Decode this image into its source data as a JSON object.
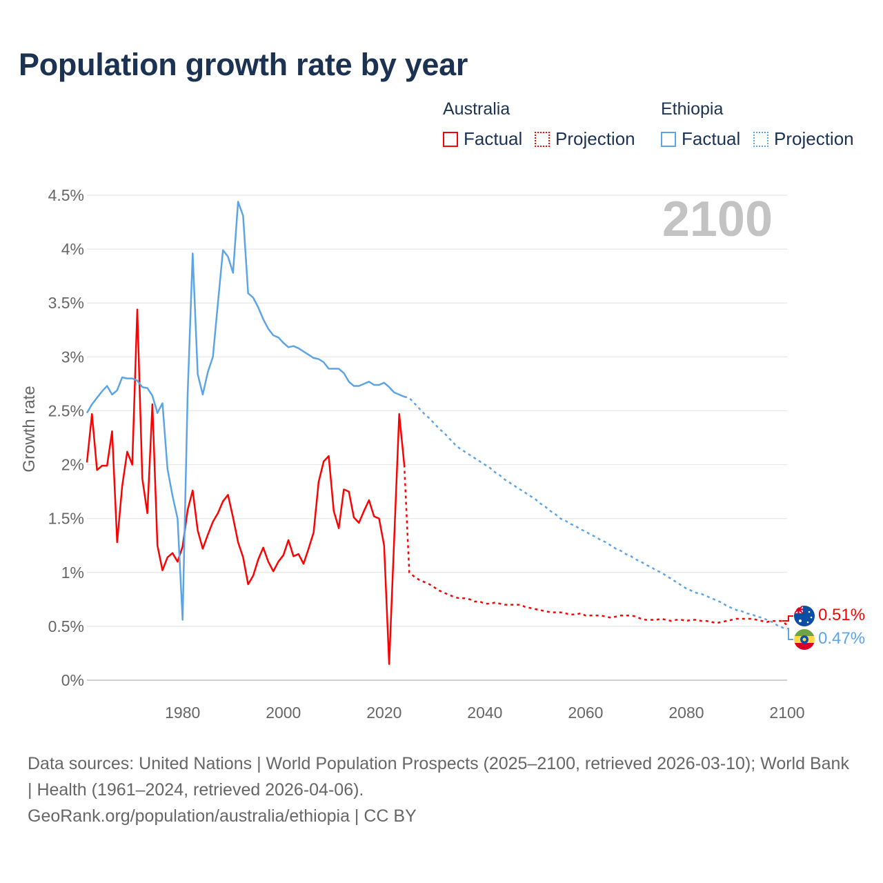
{
  "title": "Population growth rate by year",
  "legend": {
    "groups": [
      {
        "name": "Australia",
        "factual": "Factual",
        "projection": "Projection",
        "color": "#ff0000"
      },
      {
        "name": "Ethiopia",
        "factual": "Factual",
        "projection": "Projection",
        "color": "#5ba4e6"
      }
    ]
  },
  "year_marker": "2100",
  "end_labels": {
    "australia": "0.51%",
    "ethiopia": "0.47%"
  },
  "flag_icons": {
    "australia": "australia-flag-icon",
    "ethiopia": "ethiopia-flag-icon"
  },
  "footer": {
    "sources": "Data sources: United Nations | World Population Prospects (2025–2100, retrieved 2026-03-10); World Bank | Health (1961–2024, retrieved 2026-04-06).",
    "credit": "GeoRank.org/population/australia/ethiopia | CC BY"
  },
  "chart_data": {
    "type": "line",
    "title": "Population growth rate by year",
    "xlabel": "",
    "ylabel": "Growth rate",
    "xlim": [
      1961,
      2100
    ],
    "ylim": [
      0,
      4.5
    ],
    "yticks": [
      0,
      0.5,
      1,
      1.5,
      2,
      2.5,
      3,
      3.5,
      4,
      4.5
    ],
    "ytick_labels": [
      "0%",
      "0.5%",
      "1%",
      "1.5%",
      "2%",
      "2.5%",
      "3%",
      "3.5%",
      "4%",
      "4.5%"
    ],
    "xticks": [
      1980,
      2000,
      2020,
      2040,
      2060,
      2080,
      2100
    ],
    "xtick_labels": [
      "1980",
      "2000",
      "2020",
      "2040",
      "2060",
      "2080",
      "2100"
    ],
    "grid": true,
    "legend_position": "top-right",
    "series": [
      {
        "name": "Australia Factual",
        "color": "#ff0000",
        "style": "solid",
        "start_year": 1961,
        "values": [
          2.02,
          2.47,
          1.95,
          1.99,
          1.99,
          2.31,
          1.28,
          1.8,
          2.12,
          2.0,
          3.44,
          1.87,
          1.55,
          2.56,
          1.25,
          1.02,
          1.14,
          1.18,
          1.1,
          1.24,
          1.58,
          1.76,
          1.39,
          1.22,
          1.35,
          1.47,
          1.55,
          1.66,
          1.72,
          1.51,
          1.28,
          1.14,
          0.89,
          0.97,
          1.12,
          1.23,
          1.1,
          1.01,
          1.1,
          1.16,
          1.3,
          1.15,
          1.17,
          1.08,
          1.22,
          1.37,
          1.84,
          2.03,
          2.08,
          1.57,
          1.41,
          1.77,
          1.75,
          1.51,
          1.46,
          1.57,
          1.67,
          1.52,
          1.5,
          1.25,
          0.15,
          1.31,
          2.47,
          2.0
        ]
      },
      {
        "name": "Australia Projection",
        "color": "#ff0000",
        "style": "dotted",
        "start_year": 2024,
        "values": [
          2.0,
          1.0,
          0.96,
          0.93,
          0.91,
          0.89,
          0.86,
          0.83,
          0.81,
          0.79,
          0.77,
          0.76,
          0.76,
          0.75,
          0.73,
          0.73,
          0.71,
          0.71,
          0.72,
          0.71,
          0.7,
          0.7,
          0.7,
          0.7,
          0.68,
          0.67,
          0.66,
          0.65,
          0.64,
          0.63,
          0.63,
          0.63,
          0.62,
          0.61,
          0.61,
          0.62,
          0.6,
          0.6,
          0.6,
          0.6,
          0.59,
          0.58,
          0.59,
          0.6,
          0.6,
          0.6,
          0.59,
          0.57,
          0.56,
          0.56,
          0.56,
          0.57,
          0.56,
          0.55,
          0.56,
          0.56,
          0.55,
          0.56,
          0.56,
          0.55,
          0.55,
          0.54,
          0.53,
          0.54,
          0.55,
          0.56,
          0.57,
          0.57,
          0.57,
          0.57,
          0.56,
          0.55,
          0.54,
          0.55,
          0.55,
          0.55,
          0.51
        ]
      },
      {
        "name": "Ethiopia Factual",
        "color": "#5ba4e6",
        "style": "solid",
        "start_year": 1961,
        "values": [
          2.48,
          2.56,
          2.62,
          2.68,
          2.73,
          2.65,
          2.69,
          2.81,
          2.8,
          2.8,
          2.78,
          2.72,
          2.71,
          2.64,
          2.48,
          2.57,
          1.96,
          1.71,
          1.5,
          0.56,
          2.65,
          3.96,
          2.84,
          2.65,
          2.86,
          3.0,
          3.5,
          3.99,
          3.93,
          3.78,
          4.44,
          4.31,
          3.59,
          3.55,
          3.46,
          3.35,
          3.26,
          3.2,
          3.18,
          3.13,
          3.09,
          3.1,
          3.08,
          3.05,
          3.02,
          2.99,
          2.98,
          2.95,
          2.89,
          2.89,
          2.89,
          2.85,
          2.77,
          2.73,
          2.73,
          2.75,
          2.77,
          2.74,
          2.74,
          2.76,
          2.72,
          2.67,
          2.65,
          2.63
        ]
      },
      {
        "name": "Ethiopia Projection",
        "color": "#5ba4e6",
        "style": "dotted",
        "start_year": 2024,
        "values": [
          2.63,
          2.62,
          2.57,
          2.52,
          2.47,
          2.43,
          2.38,
          2.33,
          2.29,
          2.24,
          2.19,
          2.15,
          2.12,
          2.09,
          2.06,
          2.03,
          2.0,
          1.97,
          1.93,
          1.9,
          1.86,
          1.83,
          1.8,
          1.77,
          1.74,
          1.71,
          1.68,
          1.64,
          1.61,
          1.57,
          1.54,
          1.5,
          1.48,
          1.45,
          1.43,
          1.4,
          1.38,
          1.35,
          1.33,
          1.3,
          1.28,
          1.25,
          1.22,
          1.2,
          1.17,
          1.15,
          1.12,
          1.1,
          1.07,
          1.05,
          1.02,
          1.0,
          0.97,
          0.94,
          0.91,
          0.88,
          0.85,
          0.83,
          0.81,
          0.8,
          0.78,
          0.76,
          0.74,
          0.72,
          0.69,
          0.67,
          0.65,
          0.64,
          0.62,
          0.61,
          0.59,
          0.58,
          0.56,
          0.54,
          0.51,
          0.49,
          0.47
        ]
      }
    ]
  }
}
